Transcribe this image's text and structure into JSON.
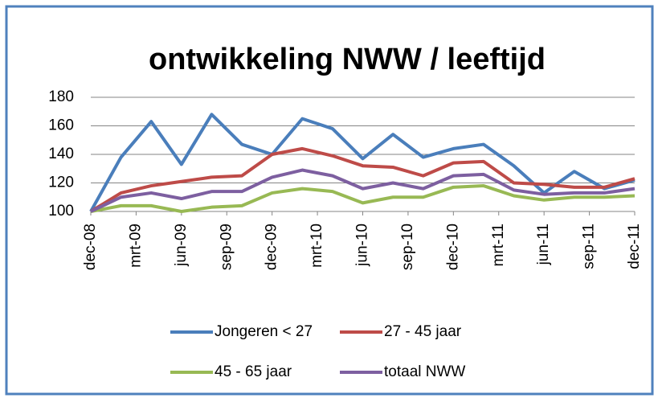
{
  "chart_data": {
    "type": "line",
    "title": "ontwikkeling NWW / leeftijd",
    "x": [
      0,
      2,
      4,
      6,
      8,
      10,
      12,
      14,
      16,
      18,
      20,
      22,
      24,
      26,
      28,
      30,
      32,
      34,
      36
    ],
    "xlim": [
      0,
      36
    ],
    "xticks": [
      {
        "value": 0,
        "label": "dec-08"
      },
      {
        "value": 3,
        "label": "mrt-09"
      },
      {
        "value": 6,
        "label": "jun-09"
      },
      {
        "value": 9,
        "label": "sep-09"
      },
      {
        "value": 12,
        "label": "dec-09"
      },
      {
        "value": 15,
        "label": "mrt-10"
      },
      {
        "value": 18,
        "label": "jun-10"
      },
      {
        "value": 21,
        "label": "sep-10"
      },
      {
        "value": 24,
        "label": "dec-10"
      },
      {
        "value": 27,
        "label": "mrt-11"
      },
      {
        "value": 30,
        "label": "jun-11"
      },
      {
        "value": 33,
        "label": "sep-11"
      },
      {
        "value": 36,
        "label": "dec-11"
      }
    ],
    "ylim": [
      100,
      180
    ],
    "yticks": [
      100,
      120,
      140,
      160,
      180
    ],
    "grid": true,
    "legend": "bottom",
    "series": [
      {
        "name": "Jongeren < 27",
        "color": "#4a7ebb",
        "values": [
          100,
          138,
          163,
          133,
          168,
          147,
          140,
          165,
          158,
          137,
          154,
          138,
          144,
          147,
          132,
          113,
          128,
          116,
          122
        ]
      },
      {
        "name": "27 - 45 jaar",
        "color": "#be4b48",
        "values": [
          100,
          113,
          118,
          121,
          124,
          125,
          140,
          144,
          139,
          132,
          131,
          125,
          134,
          135,
          120,
          119,
          117,
          117,
          123
        ]
      },
      {
        "name": "45 - 65 jaar",
        "color": "#98b954",
        "values": [
          100,
          104,
          104,
          100,
          103,
          104,
          113,
          116,
          114,
          106,
          110,
          110,
          117,
          118,
          111,
          108,
          110,
          110,
          111
        ]
      },
      {
        "name": "totaal NWW",
        "color": "#7d5fa0",
        "values": [
          100,
          110,
          113,
          109,
          114,
          114,
          124,
          129,
          125,
          116,
          120,
          116,
          125,
          126,
          115,
          112,
          113,
          113,
          116
        ]
      }
    ]
  }
}
